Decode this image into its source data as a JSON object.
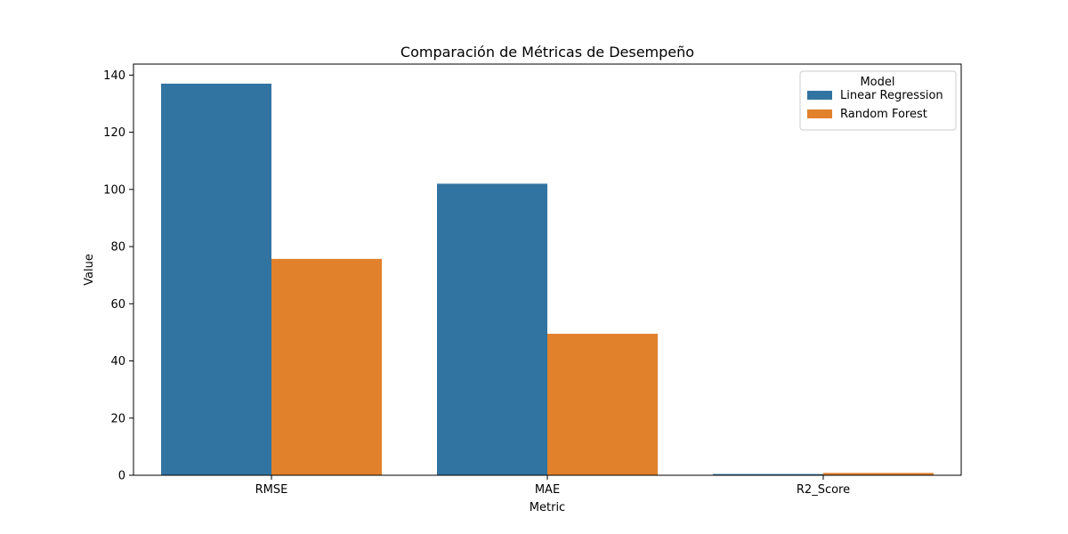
{
  "chart_data": {
    "type": "bar",
    "title": "Comparación de Métricas de Desempeño",
    "xlabel": "Metric",
    "ylabel": "Value",
    "categories": [
      "RMSE",
      "MAE",
      "R2_Score"
    ],
    "series": [
      {
        "name": "Linear Regression",
        "values": [
          137,
          102,
          0.43
        ],
        "color": "#3274a1"
      },
      {
        "name": "Random Forest",
        "values": [
          75.7,
          49.5,
          0.82
        ],
        "color": "#e1812c"
      }
    ],
    "ylim": [
      0,
      143.85
    ],
    "yticks": [
      0,
      20,
      40,
      60,
      80,
      100,
      120,
      140
    ],
    "grid": false,
    "legend": {
      "title": "Model",
      "position": "top-right"
    }
  }
}
